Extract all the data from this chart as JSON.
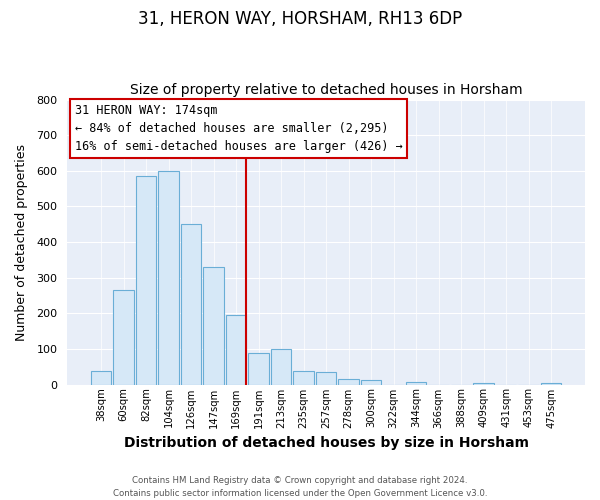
{
  "title": "31, HERON WAY, HORSHAM, RH13 6DP",
  "subtitle": "Size of property relative to detached houses in Horsham",
  "xlabel": "Distribution of detached houses by size in Horsham",
  "ylabel": "Number of detached properties",
  "bins": [
    "38sqm",
    "60sqm",
    "82sqm",
    "104sqm",
    "126sqm",
    "147sqm",
    "169sqm",
    "191sqm",
    "213sqm",
    "235sqm",
    "257sqm",
    "278sqm",
    "300sqm",
    "322sqm",
    "344sqm",
    "366sqm",
    "388sqm",
    "409sqm",
    "431sqm",
    "453sqm",
    "475sqm"
  ],
  "bar_values": [
    38,
    265,
    585,
    600,
    450,
    330,
    195,
    88,
    100,
    38,
    35,
    15,
    12,
    0,
    8,
    0,
    0,
    5,
    0,
    0,
    5
  ],
  "bar_color": "#d6e8f7",
  "bar_edge_color": "#6aaed6",
  "vline_x_index": 6,
  "vline_color": "#cc0000",
  "annotation_text": "31 HERON WAY: 174sqm\n← 84% of detached houses are smaller (2,295)\n16% of semi-detached houses are larger (426) →",
  "annotation_box_color": "white",
  "annotation_box_edge_color": "#cc0000",
  "ylim": [
    0,
    800
  ],
  "yticks": [
    0,
    100,
    200,
    300,
    400,
    500,
    600,
    700,
    800
  ],
  "title_fontsize": 12,
  "subtitle_fontsize": 10,
  "xlabel_fontsize": 10,
  "ylabel_fontsize": 9,
  "footer_line1": "Contains HM Land Registry data © Crown copyright and database right 2024.",
  "footer_line2": "Contains public sector information licensed under the Open Government Licence v3.0.",
  "fig_bg_color": "#ffffff",
  "plot_bg_color": "#e8eef8"
}
